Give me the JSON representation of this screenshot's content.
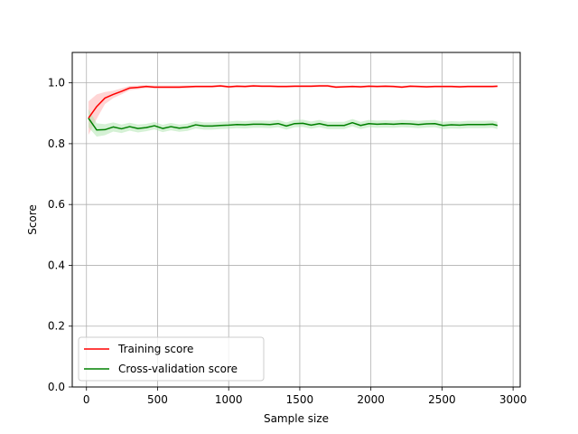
{
  "chart_data": {
    "type": "line",
    "title": "",
    "xlabel": "Sample size",
    "ylabel": "Score",
    "xlim": [
      -100,
      3050
    ],
    "ylim": [
      0.0,
      1.1
    ],
    "x_ticks": [
      0,
      500,
      1000,
      1500,
      2000,
      2500,
      3000
    ],
    "x_tick_labels": [
      "0",
      "500",
      "1000",
      "1500",
      "2000",
      "2500",
      "3000"
    ],
    "y_ticks": [
      0.0,
      0.2,
      0.4,
      0.6,
      0.8,
      1.0
    ],
    "y_tick_labels": [
      "0.0",
      "0.2",
      "0.4",
      "0.6",
      "0.8",
      "1.0"
    ],
    "grid": true,
    "legend_position": "lower-left",
    "x": [
      14,
      72,
      130,
      188,
      246,
      304,
      362,
      420,
      478,
      536,
      594,
      652,
      710,
      768,
      826,
      884,
      942,
      1000,
      1058,
      1116,
      1174,
      1232,
      1290,
      1348,
      1406,
      1464,
      1522,
      1580,
      1638,
      1696,
      1754,
      1812,
      1870,
      1928,
      1986,
      2044,
      2102,
      2160,
      2218,
      2276,
      2334,
      2392,
      2450,
      2508,
      2566,
      2624,
      2682,
      2740,
      2798,
      2856,
      2890
    ],
    "series": [
      {
        "name": "Training score",
        "color": "#ff0000",
        "band_color": "#ffb3b3",
        "values": [
          0.884,
          0.922,
          0.95,
          0.962,
          0.972,
          0.983,
          0.985,
          0.988,
          0.986,
          0.986,
          0.986,
          0.986,
          0.987,
          0.988,
          0.988,
          0.988,
          0.99,
          0.987,
          0.989,
          0.988,
          0.99,
          0.989,
          0.989,
          0.988,
          0.988,
          0.989,
          0.989,
          0.989,
          0.99,
          0.99,
          0.986,
          0.987,
          0.988,
          0.987,
          0.989,
          0.988,
          0.989,
          0.988,
          0.986,
          0.989,
          0.988,
          0.987,
          0.988,
          0.988,
          0.988,
          0.987,
          0.988,
          0.988,
          0.988,
          0.988,
          0.989
        ],
        "band": [
          0.055,
          0.04,
          0.02,
          0.012,
          0.01,
          0.007,
          0.006,
          0.005,
          0.005,
          0.005,
          0.005,
          0.005,
          0.005,
          0.004,
          0.004,
          0.004,
          0.004,
          0.004,
          0.004,
          0.004,
          0.004,
          0.004,
          0.004,
          0.004,
          0.004,
          0.004,
          0.004,
          0.004,
          0.004,
          0.004,
          0.004,
          0.004,
          0.004,
          0.004,
          0.004,
          0.004,
          0.004,
          0.004,
          0.004,
          0.004,
          0.004,
          0.004,
          0.004,
          0.004,
          0.004,
          0.004,
          0.004,
          0.004,
          0.004,
          0.004,
          0.004
        ]
      },
      {
        "name": "Cross-validation score",
        "color": "#008000",
        "band_color": "#b3e6b3",
        "values": [
          0.884,
          0.845,
          0.846,
          0.855,
          0.849,
          0.856,
          0.85,
          0.853,
          0.859,
          0.85,
          0.856,
          0.851,
          0.854,
          0.862,
          0.858,
          0.858,
          0.86,
          0.861,
          0.863,
          0.862,
          0.864,
          0.864,
          0.863,
          0.866,
          0.858,
          0.866,
          0.867,
          0.861,
          0.866,
          0.86,
          0.86,
          0.86,
          0.869,
          0.86,
          0.866,
          0.864,
          0.865,
          0.864,
          0.866,
          0.865,
          0.863,
          0.865,
          0.866,
          0.86,
          0.862,
          0.861,
          0.863,
          0.863,
          0.863,
          0.864,
          0.86
        ],
        "band": [
          0.03,
          0.022,
          0.018,
          0.015,
          0.014,
          0.013,
          0.013,
          0.012,
          0.012,
          0.012,
          0.012,
          0.012,
          0.012,
          0.012,
          0.012,
          0.012,
          0.012,
          0.012,
          0.012,
          0.012,
          0.012,
          0.012,
          0.012,
          0.012,
          0.012,
          0.012,
          0.012,
          0.012,
          0.012,
          0.012,
          0.012,
          0.012,
          0.012,
          0.012,
          0.012,
          0.012,
          0.012,
          0.012,
          0.012,
          0.012,
          0.012,
          0.012,
          0.012,
          0.012,
          0.012,
          0.012,
          0.012,
          0.012,
          0.012,
          0.012,
          0.012
        ]
      }
    ]
  }
}
